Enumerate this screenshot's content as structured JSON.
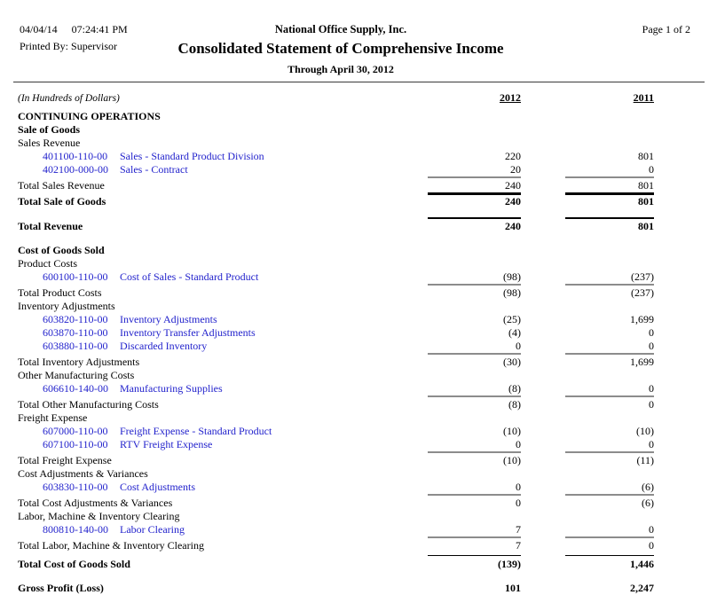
{
  "header": {
    "date": "04/04/14",
    "time": "07:24:41 PM",
    "company": "National Office Supply, Inc.",
    "page_indicator": "Page 1 of 2",
    "printed_by_label": "Printed By:",
    "printed_by": "Supervisor",
    "title": "Consolidated Statement of Comprehensive Income",
    "subtitle": "Through April 30, 2012"
  },
  "table": {
    "units_note": "(In Hundreds of Dollars)",
    "col_2012": "2012",
    "col_2011": "2011",
    "rows": [
      {
        "type": "section",
        "label": "CONTINUING OPERATIONS"
      },
      {
        "type": "section",
        "label": "Sale of Goods"
      },
      {
        "type": "group",
        "label": "Sales Revenue"
      },
      {
        "type": "account",
        "account": "401100-110-00",
        "desc": "Sales - Standard Product Division",
        "v2012": "220",
        "v2011": "801"
      },
      {
        "type": "account",
        "account": "402100-000-00",
        "desc": "Sales - Contract",
        "v2012": "20",
        "v2011": "0"
      },
      {
        "type": "total",
        "label": "Total Sales Revenue",
        "v2012": "240",
        "v2011": "801",
        "rule": "gray"
      },
      {
        "type": "total-bold",
        "label": "Total Sale of Goods",
        "v2012": "240",
        "v2011": "801",
        "rule": "thick"
      },
      {
        "type": "spacer",
        "h": 10
      },
      {
        "type": "total-bold",
        "label": "Total Revenue",
        "v2012": "240",
        "v2011": "801",
        "rule": "medium"
      },
      {
        "type": "spacer",
        "h": 12
      },
      {
        "type": "section",
        "label": "Cost of Goods Sold"
      },
      {
        "type": "group",
        "label": "Product Costs"
      },
      {
        "type": "account",
        "account": "600100-110-00",
        "desc": "Cost of Sales - Standard Product",
        "v2012": "(98)",
        "v2011": "(237)"
      },
      {
        "type": "total",
        "label": "Total Product Costs",
        "v2012": "(98)",
        "v2011": "(237)",
        "rule": "gray"
      },
      {
        "type": "group",
        "label": "Inventory Adjustments"
      },
      {
        "type": "account",
        "account": "603820-110-00",
        "desc": "Inventory Adjustments",
        "v2012": "(25)",
        "v2011": "1,699"
      },
      {
        "type": "account",
        "account": "603870-110-00",
        "desc": "Inventory Transfer Adjustments",
        "v2012": "(4)",
        "v2011": "0"
      },
      {
        "type": "account",
        "account": "603880-110-00",
        "desc": "Discarded Inventory",
        "v2012": "0",
        "v2011": "0"
      },
      {
        "type": "total",
        "label": "Total Inventory Adjustments",
        "v2012": "(30)",
        "v2011": "1,699",
        "rule": "gray"
      },
      {
        "type": "group",
        "label": "Other Manufacturing Costs"
      },
      {
        "type": "account",
        "account": "606610-140-00",
        "desc": "Manufacturing Supplies",
        "v2012": "(8)",
        "v2011": "0"
      },
      {
        "type": "total",
        "label": "Total Other Manufacturing Costs",
        "v2012": "(8)",
        "v2011": "0",
        "rule": "gray"
      },
      {
        "type": "group",
        "label": "Freight Expense"
      },
      {
        "type": "account",
        "account": "607000-110-00",
        "desc": "Freight Expense - Standard Product",
        "v2012": "(10)",
        "v2011": "(10)"
      },
      {
        "type": "account",
        "account": "607100-110-00",
        "desc": "RTV Freight Expense",
        "v2012": "0",
        "v2011": "0"
      },
      {
        "type": "total",
        "label": "Total Freight Expense",
        "v2012": "(10)",
        "v2011": "(11)",
        "rule": "gray"
      },
      {
        "type": "group",
        "label": "Cost Adjustments & Variances"
      },
      {
        "type": "account",
        "account": "603830-110-00",
        "desc": "Cost Adjustments",
        "v2012": "0",
        "v2011": "(6)"
      },
      {
        "type": "total",
        "label": "Total Cost Adjustments & Variances",
        "v2012": "0",
        "v2011": "(6)",
        "rule": "gray"
      },
      {
        "type": "group",
        "label": "Labor, Machine & Inventory Clearing"
      },
      {
        "type": "account",
        "account": "800810-140-00",
        "desc": "Labor Clearing",
        "v2012": "7",
        "v2011": "0"
      },
      {
        "type": "total",
        "label": "Total Labor, Machine & Inventory Clearing",
        "v2012": "7",
        "v2011": "0",
        "rule": "gray"
      },
      {
        "type": "total-bold",
        "label": "Total Cost of Goods Sold",
        "v2012": "(139)",
        "v2011": "1,446",
        "rule": "thin",
        "margin_top": 3
      },
      {
        "type": "spacer",
        "h": 12
      },
      {
        "type": "total-bold",
        "label": "Gross Profit (Loss)",
        "v2012": "101",
        "v2011": "2,247"
      }
    ]
  },
  "colors": {
    "link_blue": "#2222CC",
    "rule_gray": "#8C8C8C",
    "text": "#000000"
  }
}
